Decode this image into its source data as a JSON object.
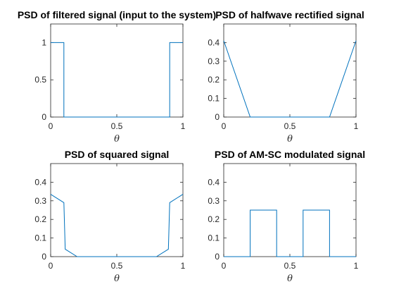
{
  "chart_data": [
    {
      "type": "line",
      "title": "PSD of filtered signal (input to the system)",
      "xlabel": "θ",
      "ylabel": "",
      "xlim": [
        0,
        1
      ],
      "ylim": [
        0,
        1.25
      ],
      "xticks": [
        "0",
        "0.5",
        "1"
      ],
      "yticks": [
        "0",
        "0.5",
        "1"
      ],
      "grid": false,
      "series": [
        {
          "color": "#0072BD",
          "x": [
            0,
            0.1,
            0.1,
            0.9,
            0.9,
            1
          ],
          "y": [
            1,
            1,
            0,
            0,
            1,
            1
          ]
        }
      ]
    },
    {
      "type": "line",
      "title": "PSD of halfwave rectified signal",
      "xlabel": "θ",
      "ylabel": "",
      "xlim": [
        0,
        1
      ],
      "ylim": [
        0,
        0.5
      ],
      "xticks": [
        "0",
        "0.5",
        "1"
      ],
      "yticks": [
        "0",
        "0.1",
        "0.2",
        "0.3",
        "0.4"
      ],
      "grid": false,
      "series": [
        {
          "color": "#0072BD",
          "x": [
            0,
            0.2,
            0.8,
            1
          ],
          "y": [
            0.41,
            0,
            0,
            0.41
          ]
        }
      ]
    },
    {
      "type": "line",
      "title": "PSD of squared signal",
      "xlabel": "θ",
      "ylabel": "",
      "xlim": [
        0,
        1
      ],
      "ylim": [
        0,
        0.5
      ],
      "xticks": [
        "0",
        "0.5",
        "1"
      ],
      "yticks": [
        "0",
        "0.1",
        "0.2",
        "0.3",
        "0.4"
      ],
      "grid": false,
      "series": [
        {
          "color": "#0072BD",
          "x": [
            0,
            0.1,
            0.11,
            0.2,
            0.8,
            0.89,
            0.9,
            1
          ],
          "y": [
            0.335,
            0.29,
            0.04,
            0,
            0,
            0.04,
            0.29,
            0.335
          ]
        }
      ]
    },
    {
      "type": "line",
      "title": "PSD of AM-SC modulated signal",
      "xlabel": "θ",
      "ylabel": "",
      "xlim": [
        0,
        1
      ],
      "ylim": [
        0,
        0.5
      ],
      "xticks": [
        "0",
        "0.5",
        "1"
      ],
      "yticks": [
        "0",
        "0.1",
        "0.2",
        "0.3",
        "0.4"
      ],
      "grid": false,
      "series": [
        {
          "color": "#0072BD",
          "x": [
            0,
            0.2,
            0.2,
            0.4,
            0.4,
            0.6,
            0.6,
            0.8,
            0.8,
            1
          ],
          "y": [
            0,
            0,
            0.25,
            0.25,
            0,
            0,
            0.25,
            0.25,
            0,
            0
          ]
        }
      ]
    }
  ]
}
